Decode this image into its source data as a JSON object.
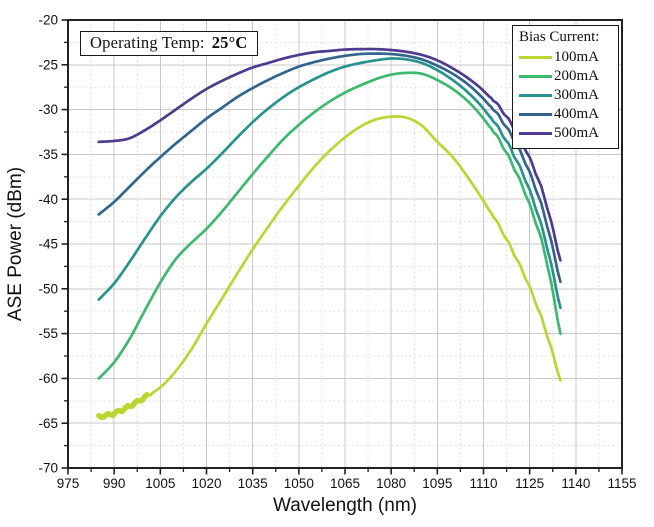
{
  "figure_note": {
    "label": "Operating Temp:",
    "value": "25°C"
  },
  "legend": {
    "title": "Bias Current:",
    "position": "top-right"
  },
  "chart_data": {
    "type": "line",
    "title": "",
    "xlabel": "Wavelength (nm)",
    "ylabel": "ASE Power (dBm)",
    "xlim": [
      975,
      1155
    ],
    "ylim": [
      -70,
      -20
    ],
    "xticks": [
      975,
      990,
      1005,
      1020,
      1035,
      1050,
      1065,
      1080,
      1095,
      1110,
      1125,
      1140,
      1155
    ],
    "yticks": [
      -70,
      -65,
      -60,
      -55,
      -50,
      -45,
      -40,
      -35,
      -30,
      -25,
      -20
    ],
    "grid": true,
    "x": [
      985,
      990,
      995,
      1000,
      1005,
      1010,
      1015,
      1020,
      1025,
      1030,
      1035,
      1040,
      1045,
      1050,
      1055,
      1060,
      1065,
      1070,
      1075,
      1080,
      1085,
      1090,
      1095,
      1100,
      1105,
      1110,
      1115,
      1120,
      1125,
      1130,
      1135
    ],
    "series": [
      {
        "name": "100mA",
        "color": "#bcd531",
        "values": [
          -64.3,
          -63.9,
          -63.1,
          -62.1,
          -61.0,
          -59.2,
          -56.8,
          -53.9,
          -51.1,
          -48.3,
          -45.6,
          -43.1,
          -40.7,
          -38.5,
          -36.4,
          -34.6,
          -33.1,
          -31.9,
          -31.1,
          -30.8,
          -30.9,
          -31.8,
          -33.6,
          -35.3,
          -37.6,
          -40.2,
          -43.1,
          -46.3,
          -50.0,
          -54.6,
          -60.4
        ]
      },
      {
        "name": "200mA",
        "color": "#3cb96e",
        "values": [
          -60.0,
          -58.2,
          -55.6,
          -52.4,
          -49.3,
          -46.7,
          -44.9,
          -43.3,
          -41.4,
          -39.3,
          -37.2,
          -35.2,
          -33.3,
          -31.7,
          -30.3,
          -29.1,
          -28.1,
          -27.3,
          -26.6,
          -26.1,
          -25.9,
          -26.0,
          -26.7,
          -27.7,
          -29.1,
          -31.0,
          -33.5,
          -36.7,
          -40.8,
          -46.3,
          -55.2
        ]
      },
      {
        "name": "300mA",
        "color": "#28928e",
        "values": [
          -51.2,
          -49.4,
          -47.0,
          -44.4,
          -41.9,
          -39.8,
          -38.1,
          -36.6,
          -34.9,
          -33.1,
          -31.4,
          -29.9,
          -28.6,
          -27.5,
          -26.6,
          -25.8,
          -25.2,
          -24.8,
          -24.5,
          -24.3,
          -24.4,
          -24.8,
          -25.6,
          -26.7,
          -28.1,
          -29.9,
          -32.3,
          -35.3,
          -39.2,
          -44.6,
          -52.3
        ]
      },
      {
        "name": "400mA",
        "color": "#32658e",
        "values": [
          -41.7,
          -40.3,
          -38.6,
          -36.9,
          -35.3,
          -33.8,
          -32.4,
          -31.0,
          -29.8,
          -28.6,
          -27.6,
          -26.7,
          -25.9,
          -25.2,
          -24.7,
          -24.3,
          -24.0,
          -23.8,
          -23.75,
          -23.8,
          -24.0,
          -24.4,
          -25.1,
          -26.0,
          -27.2,
          -28.8,
          -30.9,
          -33.6,
          -37.2,
          -42.2,
          -49.4
        ]
      },
      {
        "name": "500mA",
        "color": "#4f3a8d",
        "values": [
          -33.6,
          -33.5,
          -33.2,
          -32.3,
          -31.2,
          -30.0,
          -28.8,
          -27.7,
          -26.8,
          -26.0,
          -25.3,
          -24.8,
          -24.3,
          -23.9,
          -23.6,
          -23.45,
          -23.3,
          -23.25,
          -23.25,
          -23.35,
          -23.55,
          -23.9,
          -24.5,
          -25.4,
          -26.5,
          -27.9,
          -29.8,
          -32.3,
          -35.6,
          -40.2,
          -47.0
        ]
      }
    ],
    "style": {
      "frame_color": "#222222",
      "major_grid_color": "#c9c9c9",
      "minor_grid_color": "#dadada",
      "text_color": "#111111"
    }
  }
}
